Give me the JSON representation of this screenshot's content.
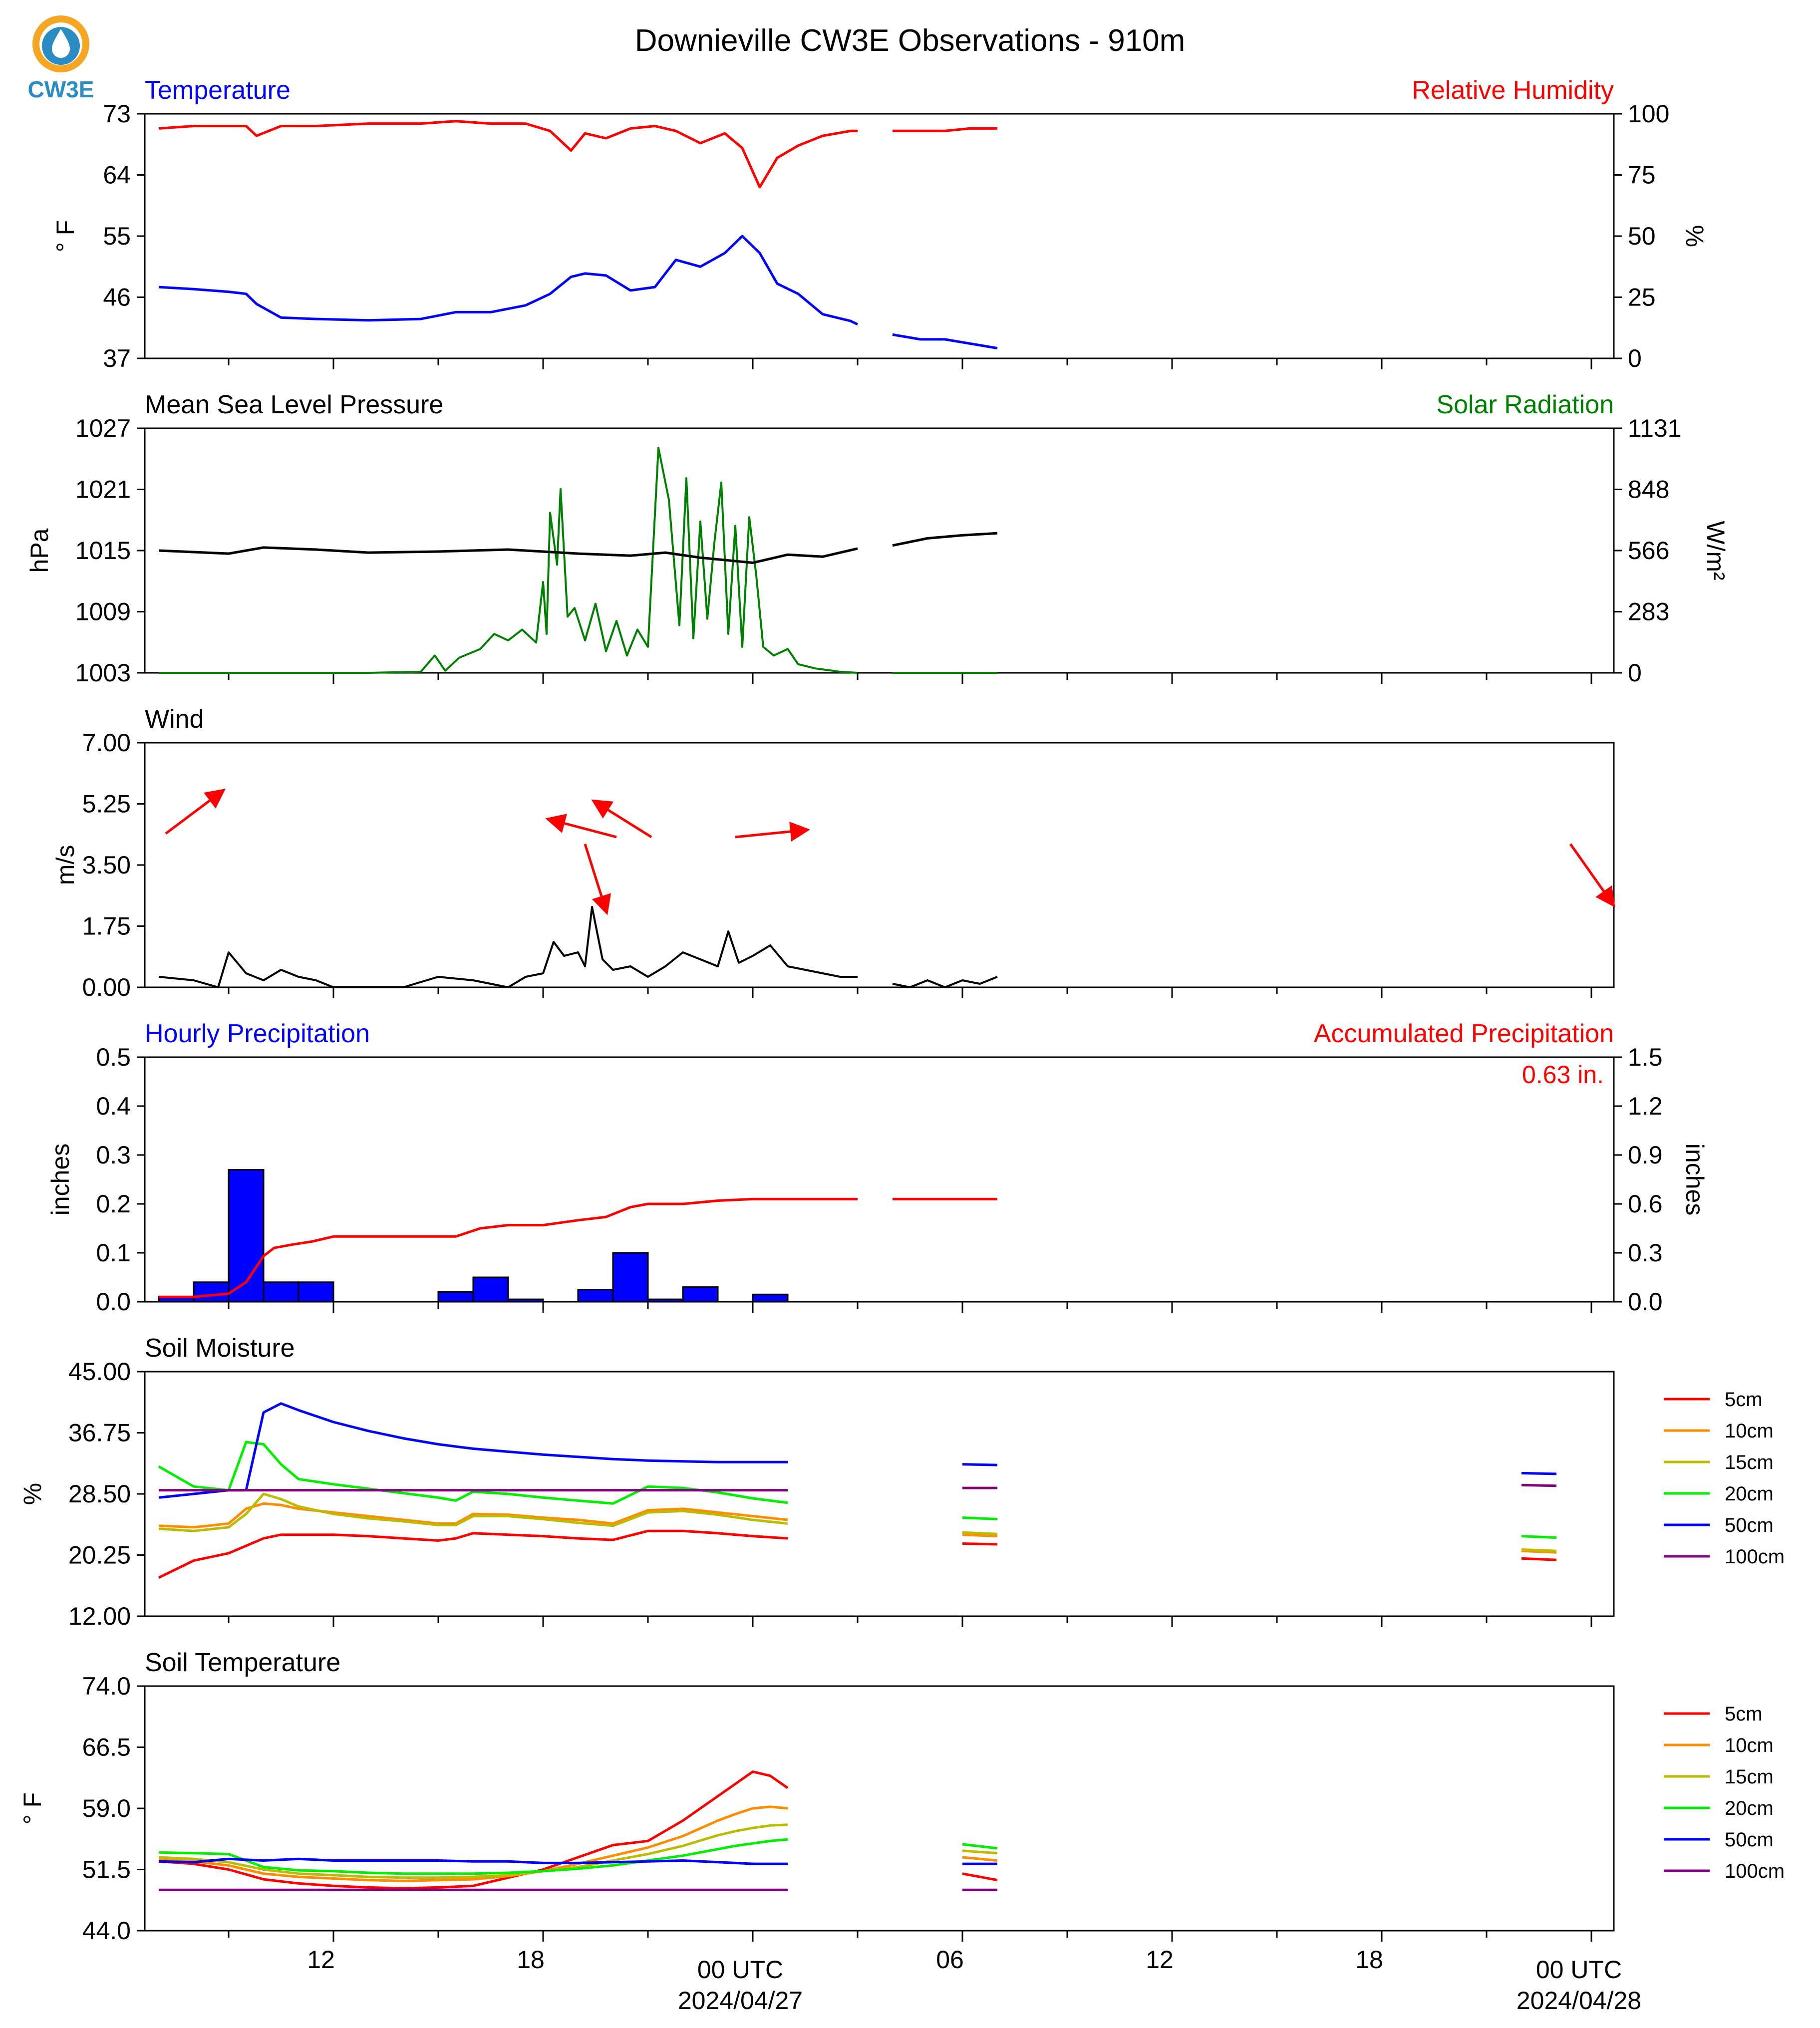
{
  "title": "Downieville CW3E Observations - 910m",
  "logo": {
    "text": "CW3E",
    "colors": {
      "ring": "#f5a623",
      "drop": "#2b8cc4"
    }
  },
  "colors": {
    "red": "#ff0000",
    "blue": "#0000ff",
    "green": "#008000",
    "black": "#000000",
    "orange": "#ff8c00",
    "olive": "#bbbb00",
    "lime": "#00ee00",
    "purple": "#800080"
  },
  "x_axis": {
    "tick_labels": [
      "12",
      "18",
      "00 UTC",
      "06",
      "12",
      "18",
      "00 UTC"
    ],
    "date_labels": [
      "2024/04/27",
      "2024/04/28"
    ]
  },
  "chart_data": [
    {
      "type": "line",
      "panel": "temperature_rh",
      "left_title": "Temperature",
      "right_title": "Relative Humidity",
      "ylabel_left": "° F",
      "ylabel_right": "%",
      "ylim_left": [
        37,
        73
      ],
      "ylim_right": [
        0,
        100
      ],
      "yticks_left": [
        "73",
        "64",
        "55",
        "46",
        "37"
      ],
      "yticks_right": [
        "100",
        "75",
        "50",
        "25",
        "0"
      ],
      "x_hours": [
        7.0,
        8.0,
        9.0,
        9.5,
        9.8,
        10.5,
        11.5,
        13.0,
        14.5,
        15.5,
        16.5,
        17.5,
        18.2,
        18.8,
        19.2,
        19.8,
        20.5,
        21.2,
        21.8,
        22.5,
        23.2,
        23.7,
        24.2,
        24.7,
        25.3,
        26.0,
        26.8,
        27.0
      ],
      "temperature_f": [
        47.5,
        47.2,
        46.8,
        46.5,
        45.0,
        43.0,
        42.8,
        42.6,
        42.8,
        43.8,
        43.8,
        44.8,
        46.5,
        49.0,
        49.5,
        49.2,
        47.0,
        47.5,
        51.5,
        50.5,
        52.5,
        55.0,
        52.5,
        48.0,
        46.5,
        43.5,
        42.5,
        42.0
      ],
      "x_hours_b": [
        28.0,
        28.8,
        29.5,
        30.2,
        31.0
      ],
      "temperature_f_b": [
        40.5,
        39.8,
        39.8,
        39.2,
        38.5
      ],
      "rh_pct": [
        94,
        95,
        95,
        95,
        91,
        95,
        95,
        96,
        96,
        97,
        96,
        96,
        93,
        85,
        92,
        90,
        94,
        95,
        93,
        88,
        92,
        86,
        70,
        82,
        87,
        91,
        93,
        93
      ],
      "rh_pct_b": [
        93,
        93,
        93,
        94,
        94
      ]
    },
    {
      "type": "line",
      "panel": "pressure_solar",
      "left_title": "Mean Sea Level Pressure",
      "right_title": "Solar Radiation",
      "ylabel_left": "hPa",
      "ylabel_right": "W/m²",
      "ylim_left": [
        1003,
        1027
      ],
      "ylim_right": [
        0,
        1131
      ],
      "yticks_left": [
        "1027",
        "1021",
        "1015",
        "1009",
        "1003"
      ],
      "yticks_right": [
        "1131",
        "848",
        "566",
        "283",
        "0"
      ],
      "x_hours": [
        7.0,
        9.0,
        10.0,
        11.5,
        13.0,
        15.0,
        17.0,
        19.0,
        20.5,
        21.5,
        22.5,
        24.0,
        25.0,
        26.0,
        27.0
      ],
      "pressure_hpa": [
        1015.0,
        1014.7,
        1015.3,
        1015.1,
        1014.8,
        1014.9,
        1015.1,
        1014.7,
        1014.5,
        1014.8,
        1014.3,
        1013.8,
        1014.6,
        1014.4,
        1015.2
      ],
      "x_hours_b": [
        28.0,
        29.0,
        30.0,
        31.0
      ],
      "pressure_hpa_b": [
        1015.5,
        1016.2,
        1016.5,
        1016.7
      ],
      "solar_x_hours": [
        7.0,
        13.0,
        14.5,
        14.9,
        15.2,
        15.6,
        16.2,
        16.6,
        17.0,
        17.4,
        17.8,
        18.0,
        18.1,
        18.2,
        18.4,
        18.5,
        18.7,
        18.9,
        19.2,
        19.5,
        19.8,
        20.1,
        20.4,
        20.7,
        21.0,
        21.3,
        21.6,
        21.9,
        22.1,
        22.3,
        22.5,
        22.7,
        22.9,
        23.1,
        23.3,
        23.5,
        23.7,
        23.9,
        24.1,
        24.3,
        24.6,
        25.0,
        25.3,
        25.8,
        26.5,
        27.0
      ],
      "solar_wm2": [
        0,
        0,
        5,
        80,
        10,
        70,
        110,
        180,
        150,
        200,
        140,
        420,
        180,
        740,
        500,
        850,
        260,
        300,
        150,
        320,
        100,
        240,
        80,
        200,
        120,
        1040,
        800,
        220,
        900,
        160,
        700,
        250,
        600,
        880,
        180,
        680,
        120,
        720,
        450,
        120,
        80,
        110,
        40,
        20,
        5,
        0
      ],
      "solar_x_hours_b": [
        28.0,
        31.0
      ],
      "solar_wm2_b": [
        0,
        0
      ]
    },
    {
      "type": "line",
      "panel": "wind",
      "left_title": "Wind",
      "ylabel_left": "m/s",
      "ylim_left": [
        0,
        7
      ],
      "yticks_left": [
        "7.00",
        "5.25",
        "3.50",
        "1.75",
        "0.00"
      ],
      "x_hours": [
        7.0,
        8.0,
        8.7,
        9.0,
        9.5,
        10.0,
        10.5,
        11.0,
        11.5,
        12.0,
        13.0,
        14.0,
        15.0,
        16.0,
        17.0,
        17.5,
        18.0,
        18.3,
        18.6,
        19.0,
        19.2,
        19.4,
        19.7,
        20.0,
        20.5,
        21.0,
        21.5,
        22.0,
        22.5,
        23.0,
        23.3,
        23.6,
        24.0,
        24.5,
        25.0,
        25.5,
        26.0,
        26.5,
        27.0
      ],
      "speed_ms": [
        0.3,
        0.2,
        0.0,
        1.0,
        0.4,
        0.2,
        0.5,
        0.3,
        0.2,
        0.0,
        0.0,
        0.0,
        0.3,
        0.2,
        0.0,
        0.3,
        0.4,
        1.3,
        0.9,
        1.0,
        0.6,
        2.3,
        0.8,
        0.5,
        0.6,
        0.3,
        0.6,
        1.0,
        0.8,
        0.6,
        1.6,
        0.7,
        0.9,
        1.2,
        0.6,
        0.5,
        0.4,
        0.3,
        0.3
      ],
      "x_hours_b": [
        28.0,
        28.5,
        29.0,
        29.5,
        30.0,
        30.5,
        31.0
      ],
      "speed_ms_b": [
        0.1,
        0.0,
        0.2,
        0.0,
        0.2,
        0.1,
        0.3
      ],
      "wind_vectors": [
        {
          "x_hours": 7.2,
          "y_ms": 4.4,
          "dx_hours": 1.6,
          "dy_ms": 1.2
        },
        {
          "x_hours": 20.1,
          "y_ms": 4.3,
          "dx_hours": -1.9,
          "dy_ms": 0.5
        },
        {
          "x_hours": 21.1,
          "y_ms": 4.3,
          "dx_hours": -1.6,
          "dy_ms": 1.0
        },
        {
          "x_hours": 19.2,
          "y_ms": 4.1,
          "dx_hours": 0.6,
          "dy_ms": -1.9
        },
        {
          "x_hours": 23.5,
          "y_ms": 4.3,
          "dx_hours": 2.0,
          "dy_ms": 0.2
        },
        {
          "x_hours": 47.4,
          "y_ms": 4.1,
          "dx_hours": 1.2,
          "dy_ms": -1.7
        }
      ]
    },
    {
      "type": "bar",
      "panel": "precipitation",
      "left_title": "Hourly Precipitation",
      "right_title": "Accumulated Precipitation",
      "annotation": "0.63 in.",
      "ylabel_left": "inches",
      "ylabel_right": "inches",
      "ylim_left": [
        0,
        0.5
      ],
      "ylim_right": [
        0,
        1.5
      ],
      "yticks_left": [
        "0.5",
        "0.4",
        "0.3",
        "0.2",
        "0.1",
        "0.0"
      ],
      "yticks_right": [
        "1.5",
        "1.2",
        "0.9",
        "0.6",
        "0.3",
        "0.0"
      ],
      "bar_start_hours": [
        7,
        8,
        9,
        10,
        11,
        15,
        16,
        17,
        19,
        20,
        21,
        22,
        24
      ],
      "hourly_in": [
        0.01,
        0.04,
        0.27,
        0.04,
        0.04,
        0.02,
        0.05,
        0.005,
        0.025,
        0.1,
        0.005,
        0.03,
        0.015
      ],
      "x_hours": [
        7.0,
        8.0,
        9.0,
        9.5,
        10.0,
        10.3,
        10.8,
        11.4,
        12.0,
        12.8,
        14.0,
        15.5,
        16.2,
        17.0,
        18.0,
        19.0,
        19.8,
        20.5,
        21.0,
        22.0,
        23.0,
        24.0,
        25.0,
        26.0,
        27.0
      ],
      "accumulated_in": [
        0.03,
        0.03,
        0.05,
        0.12,
        0.28,
        0.33,
        0.35,
        0.37,
        0.4,
        0.4,
        0.4,
        0.4,
        0.45,
        0.47,
        0.47,
        0.5,
        0.52,
        0.58,
        0.6,
        0.6,
        0.62,
        0.63,
        0.63,
        0.63,
        0.63
      ],
      "x_hours_b": [
        28.0,
        31.0
      ],
      "accumulated_in_b": [
        0.63,
        0.63
      ]
    },
    {
      "type": "line",
      "panel": "soil_moisture",
      "left_title": "Soil Moisture",
      "ylabel_left": "%",
      "ylim_left": [
        12,
        45
      ],
      "yticks_left": [
        "45.00",
        "36.75",
        "28.50",
        "20.25",
        "12.00"
      ],
      "x_hours": [
        7.0,
        8.0,
        9.0,
        9.5,
        10.0,
        10.5,
        11.0,
        12.0,
        13.0,
        14.0,
        15.0,
        15.5,
        16.0,
        17.0,
        18.0,
        19.0,
        20.0,
        21.0,
        22.0,
        23.0,
        24.0,
        25.0
      ],
      "series": [
        {
          "name": "5cm",
          "color": "#ff0000",
          "values": [
            17.2,
            19.5,
            20.5,
            21.5,
            22.5,
            23.0,
            23.0,
            23.0,
            22.8,
            22.5,
            22.2,
            22.5,
            23.2,
            23.0,
            22.8,
            22.5,
            22.3,
            23.5,
            23.5,
            23.2,
            22.8,
            22.5
          ],
          "values_b": [
            21.8,
            21.7
          ],
          "values_c": [
            19.8,
            19.6
          ]
        },
        {
          "name": "10cm",
          "color": "#ff8c00",
          "values": [
            24.2,
            24.0,
            24.5,
            26.5,
            27.2,
            27.0,
            26.5,
            26.0,
            25.5,
            25.0,
            24.5,
            24.5,
            25.8,
            25.7,
            25.3,
            25.0,
            24.5,
            26.3,
            26.5,
            26.0,
            25.5,
            25.0
          ],
          "values_b": [
            23.0,
            22.8
          ],
          "values_c": [
            20.8,
            20.6
          ]
        },
        {
          "name": "15cm",
          "color": "#bbbb00",
          "values": [
            23.8,
            23.5,
            24.0,
            25.8,
            28.5,
            27.8,
            26.8,
            25.8,
            25.2,
            24.8,
            24.3,
            24.3,
            25.5,
            25.5,
            25.1,
            24.6,
            24.2,
            26.0,
            26.2,
            25.7,
            25.0,
            24.5
          ],
          "values_b": [
            23.3,
            23.1
          ],
          "values_c": [
            21.0,
            20.8
          ]
        },
        {
          "name": "20cm",
          "color": "#00ee00",
          "values": [
            32.2,
            29.5,
            29.0,
            35.5,
            35.2,
            32.5,
            30.5,
            29.8,
            29.2,
            28.6,
            28.0,
            27.6,
            28.8,
            28.5,
            28.0,
            27.6,
            27.2,
            29.5,
            29.3,
            28.7,
            27.9,
            27.3
          ],
          "values_b": [
            25.3,
            25.1
          ],
          "values_c": [
            22.8,
            22.6
          ]
        },
        {
          "name": "50cm",
          "color": "#0000ff",
          "values": [
            28.0,
            28.5,
            29.0,
            29.0,
            39.5,
            40.7,
            39.8,
            38.2,
            37.0,
            36.0,
            35.2,
            34.9,
            34.6,
            34.2,
            33.8,
            33.5,
            33.2,
            33.0,
            32.9,
            32.8,
            32.8,
            32.8
          ],
          "values_b": [
            32.5,
            32.4
          ],
          "values_c": [
            31.3,
            31.2
          ]
        },
        {
          "name": "100cm",
          "color": "#800080",
          "values": [
            29.0,
            29.0,
            29.0,
            29.0,
            29.0,
            29.0,
            29.0,
            29.0,
            29.0,
            29.0,
            29.0,
            29.0,
            29.0,
            29.0,
            29.0,
            29.0,
            29.0,
            29.0,
            29.0,
            29.0,
            29.0,
            29.0
          ],
          "values_b": [
            29.3,
            29.3
          ],
          "values_c": [
            29.7,
            29.6
          ]
        }
      ],
      "x_hours_b": [
        30.0,
        31.0
      ],
      "x_hours_c": [
        46.0,
        47.0
      ]
    },
    {
      "type": "line",
      "panel": "soil_temperature",
      "left_title": "Soil Temperature",
      "ylabel_left": "° F",
      "ylim_left": [
        44,
        74
      ],
      "yticks_left": [
        "74.0",
        "66.5",
        "59.0",
        "51.5",
        "44.0"
      ],
      "x_hours": [
        7.0,
        8.0,
        9.0,
        10.0,
        11.0,
        12.0,
        13.0,
        14.0,
        15.0,
        16.0,
        17.0,
        18.0,
        19.0,
        20.0,
        21.0,
        22.0,
        23.0,
        23.5,
        24.0,
        24.5,
        25.0
      ],
      "series": [
        {
          "name": "5cm",
          "color": "#ff0000",
          "values": [
            52.5,
            52.2,
            51.5,
            50.3,
            49.8,
            49.5,
            49.3,
            49.2,
            49.3,
            49.5,
            50.5,
            51.5,
            53.0,
            54.5,
            55.0,
            57.5,
            60.5,
            62.0,
            63.5,
            63.0,
            61.5
          ],
          "values_b": [
            51.0,
            50.2
          ]
        },
        {
          "name": "10cm",
          "color": "#ff8c00",
          "values": [
            52.8,
            52.5,
            52.0,
            51.0,
            50.6,
            50.4,
            50.2,
            50.1,
            50.2,
            50.3,
            50.7,
            51.3,
            52.2,
            53.2,
            54.2,
            55.6,
            57.5,
            58.3,
            59.0,
            59.2,
            59.0
          ],
          "values_b": [
            53.0,
            52.6
          ]
        },
        {
          "name": "15cm",
          "color": "#bbbb00",
          "values": [
            53.0,
            52.8,
            52.4,
            51.5,
            51.0,
            50.8,
            50.6,
            50.5,
            50.5,
            50.6,
            50.8,
            51.3,
            51.8,
            52.6,
            53.4,
            54.4,
            55.7,
            56.2,
            56.6,
            56.9,
            57.0
          ],
          "values_b": [
            53.8,
            53.5
          ]
        },
        {
          "name": "20cm",
          "color": "#00ee00",
          "values": [
            53.6,
            53.5,
            53.4,
            51.8,
            51.4,
            51.3,
            51.1,
            51.0,
            51.0,
            51.0,
            51.1,
            51.3,
            51.6,
            52.0,
            52.6,
            53.2,
            54.0,
            54.4,
            54.7,
            55.0,
            55.2
          ],
          "values_b": [
            54.6,
            54.1
          ]
        },
        {
          "name": "50cm",
          "color": "#0000ff",
          "values": [
            52.5,
            52.4,
            52.8,
            52.6,
            52.8,
            52.6,
            52.6,
            52.6,
            52.6,
            52.5,
            52.5,
            52.3,
            52.3,
            52.4,
            52.5,
            52.6,
            52.4,
            52.3,
            52.2,
            52.2,
            52.2
          ],
          "values_b": [
            52.2,
            52.2
          ]
        },
        {
          "name": "100cm",
          "color": "#800080",
          "values": [
            49.0,
            49.0,
            49.0,
            49.0,
            49.0,
            49.0,
            49.0,
            49.0,
            49.0,
            49.0,
            49.0,
            49.0,
            49.0,
            49.0,
            49.0,
            49.0,
            49.0,
            49.0,
            49.0,
            49.0,
            49.0
          ],
          "values_b": [
            49.0,
            49.0
          ]
        }
      ],
      "x_hours_b": [
        30.0,
        31.0
      ]
    }
  ]
}
